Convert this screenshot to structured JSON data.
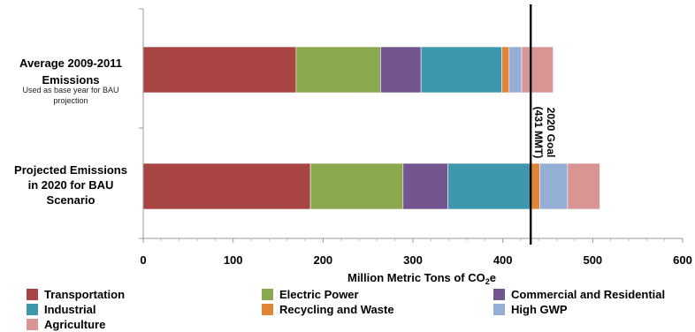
{
  "chart_data": {
    "type": "bar",
    "orientation": "horizontal",
    "stacked": true,
    "title": "",
    "xlabel": "Million Metric Tons of CO",
    "xlabel_sub": "2",
    "xlabel_tail": "e",
    "xlim": [
      0,
      600
    ],
    "xticks": [
      0,
      100,
      200,
      300,
      400,
      500,
      600
    ],
    "grid": false,
    "legend_position": "bottom",
    "categories": [
      {
        "label_lines": [
          "Average 2009-2011",
          "Emissions"
        ],
        "sub_lines": [
          "Used as base year for BAU",
          "projection"
        ]
      },
      {
        "label_lines": [
          "Projected Emissions",
          "in 2020 for BAU",
          "Scenario"
        ],
        "sub_lines": []
      }
    ],
    "series": [
      {
        "name": "Transportation",
        "color": "#a84444",
        "values": [
          170,
          186
        ]
      },
      {
        "name": "Electric Power",
        "color": "#8aa84e",
        "values": [
          94,
          103
        ]
      },
      {
        "name": "Commercial and Residential",
        "color": "#73558f",
        "values": [
          45,
          50
        ]
      },
      {
        "name": "Industrial",
        "color": "#3f97ac",
        "values": [
          90,
          93
        ]
      },
      {
        "name": "Recycling and Waste",
        "color": "#e08436",
        "values": [
          8,
          9
        ]
      },
      {
        "name": "High GWP",
        "color": "#94aed6",
        "values": [
          14,
          31
        ]
      },
      {
        "name": "Agriculture",
        "color": "#d89594",
        "values": [
          35,
          36
        ]
      }
    ],
    "reference_line": {
      "value": 431,
      "label_lines": [
        "2020 Goal",
        "(431 MMT)"
      ]
    }
  }
}
